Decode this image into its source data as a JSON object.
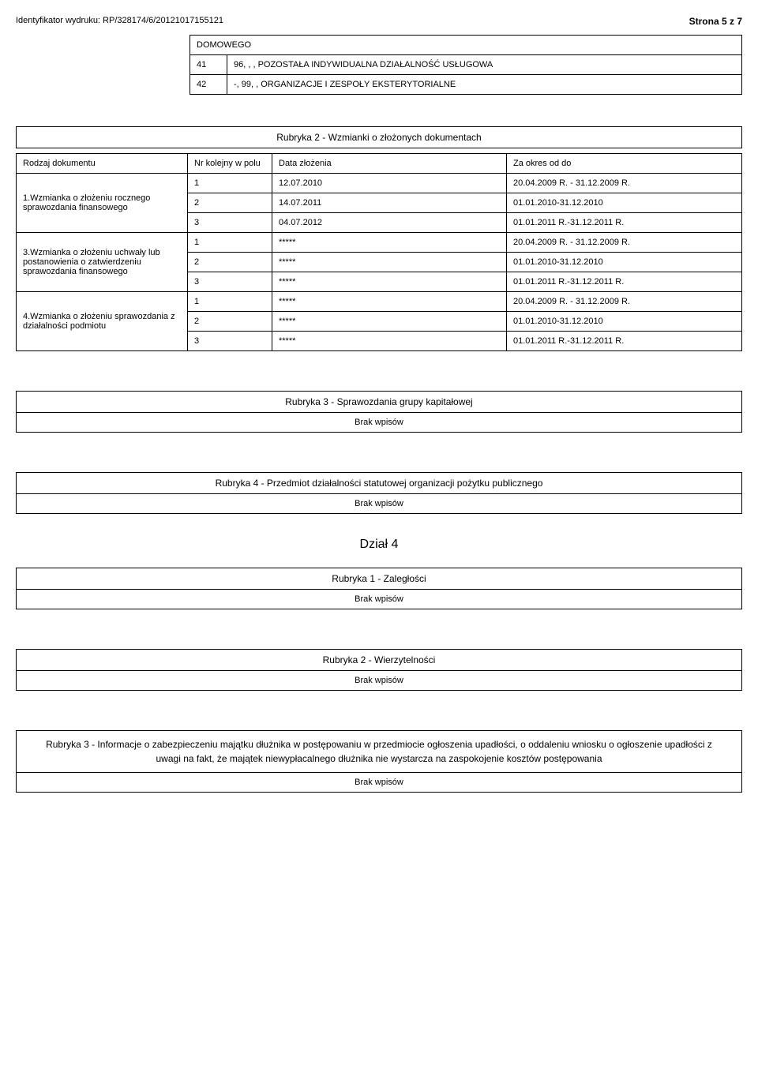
{
  "header": {
    "id_label": "Identyfikator wydruku: RP/328174/6/20121017155121",
    "page_label": "Strona 5 z 7"
  },
  "top_table": {
    "r0": "DOMOWEGO",
    "r1_num": "41",
    "r1_text": "96, , , POZOSTAŁA INDYWIDUALNA DZIAŁALNOŚĆ USŁUGOWA",
    "r2_num": "42",
    "r2_text": "-, 99, , ORGANIZACJE I ZESPOŁY EKSTERYTORIALNE"
  },
  "rubryka2_docs": {
    "title": "Rubryka 2 - Wzmianki o złożonych dokumentach",
    "head_col1": "Rodzaj dokumentu",
    "head_col2": "Nr kolejny w polu",
    "head_col3": "Data złożenia",
    "head_col4": "Za okres od do",
    "group1_label": "1.Wzmianka o złożeniu rocznego sprawozdania finansowego",
    "g1r1n": "1",
    "g1r1d": "12.07.2010",
    "g1r1p": "20.04.2009 R. - 31.12.2009 R.",
    "g1r2n": "2",
    "g1r2d": "14.07.2011",
    "g1r2p": "01.01.2010-31.12.2010",
    "g1r3n": "3",
    "g1r3d": "04.07.2012",
    "g1r3p": "01.01.2011 R.-31.12.2011 R.",
    "group3_label": "3.Wzmianka o złożeniu uchwały lub postanowienia o zatwierdzeniu sprawozdania finansowego",
    "g3r1n": "1",
    "g3r1d": "*****",
    "g3r1p": "20.04.2009 R. - 31.12.2009 R.",
    "g3r2n": "2",
    "g3r2d": "*****",
    "g3r2p": "01.01.2010-31.12.2010",
    "g3r3n": "3",
    "g3r3d": "*****",
    "g3r3p": "01.01.2011 R.-31.12.2011 R.",
    "group4_label": "4.Wzmianka o złożeniu sprawozdania z działalności podmiotu",
    "g4r1n": "1",
    "g4r1d": "*****",
    "g4r1p": "20.04.2009 R. - 31.12.2009 R.",
    "g4r2n": "2",
    "g4r2d": "*****",
    "g4r2p": "01.01.2010-31.12.2010",
    "g4r3n": "3",
    "g4r3d": "*****",
    "g4r3p": "01.01.2011 R.-31.12.2011 R."
  },
  "rubryka3_kapital": {
    "title": "Rubryka 3 - Sprawozdania grupy kapitałowej",
    "empty": "Brak wpisów"
  },
  "rubryka4_stat": {
    "title": "Rubryka 4 - Przedmiot działalności statutowej organizacji pożytku publicznego",
    "empty": "Brak wpisów"
  },
  "dzial4": "Dział 4",
  "rubryka1_zaleg": {
    "title": "Rubryka 1 - Zaległości",
    "empty": "Brak wpisów"
  },
  "rubryka2_wierz": {
    "title": "Rubryka 2 - Wierzytelności",
    "empty": "Brak wpisów"
  },
  "rubryka3_zabezp": {
    "title": "Rubryka 3 - Informacje o zabezpieczeniu majątku dłużnika w postępowaniu w przedmiocie ogłoszenia upadłości, o oddaleniu wniosku o ogłoszenie upadłości z uwagi na fakt, że majątek niewypłacalnego dłużnika nie wystarcza na zaspokojenie kosztów postępowania",
    "empty": "Brak wpisów"
  }
}
